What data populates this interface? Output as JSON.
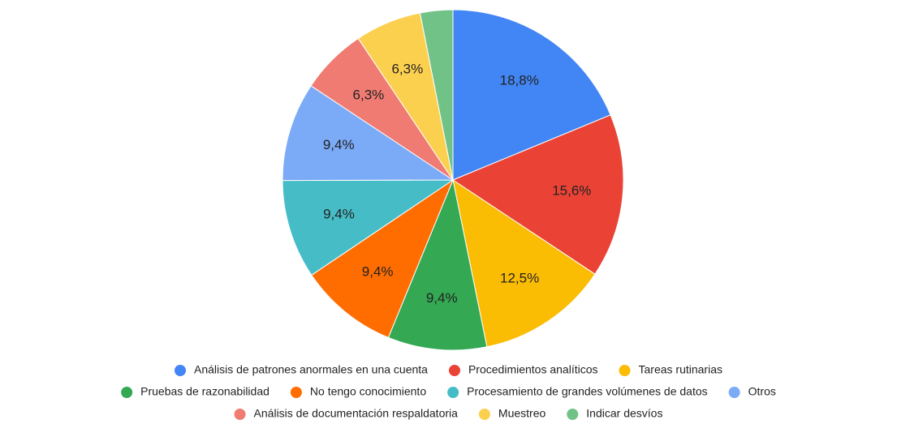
{
  "chart_data": {
    "type": "pie",
    "categories": [
      "Análisis de patrones anormales en una cuenta",
      "Procedimientos analíticos",
      "Tareas rutinarias",
      "Pruebas de razonabilidad",
      "No tengo conocimiento",
      "Procesamiento de grandes volúmenes de datos",
      "Otros",
      "Análisis de documentación respaldatoria",
      "Muestreo",
      "Indicar desvíos"
    ],
    "values": [
      18.8,
      15.6,
      12.5,
      9.4,
      9.4,
      9.4,
      9.4,
      6.3,
      6.3,
      3.1
    ],
    "value_labels": [
      "18,8%",
      "15,6%",
      "12,5%",
      "9,4%",
      "9,4%",
      "9,4%",
      "9,4%",
      "6,3%",
      "6,3%",
      null
    ],
    "colors": [
      "#4285f4",
      "#ea4335",
      "#fbbc04",
      "#34a853",
      "#ff6d01",
      "#46bdc6",
      "#7baaf7",
      "#f07b72",
      "#fcd04f",
      "#71c287"
    ],
    "legend": "bottom"
  }
}
